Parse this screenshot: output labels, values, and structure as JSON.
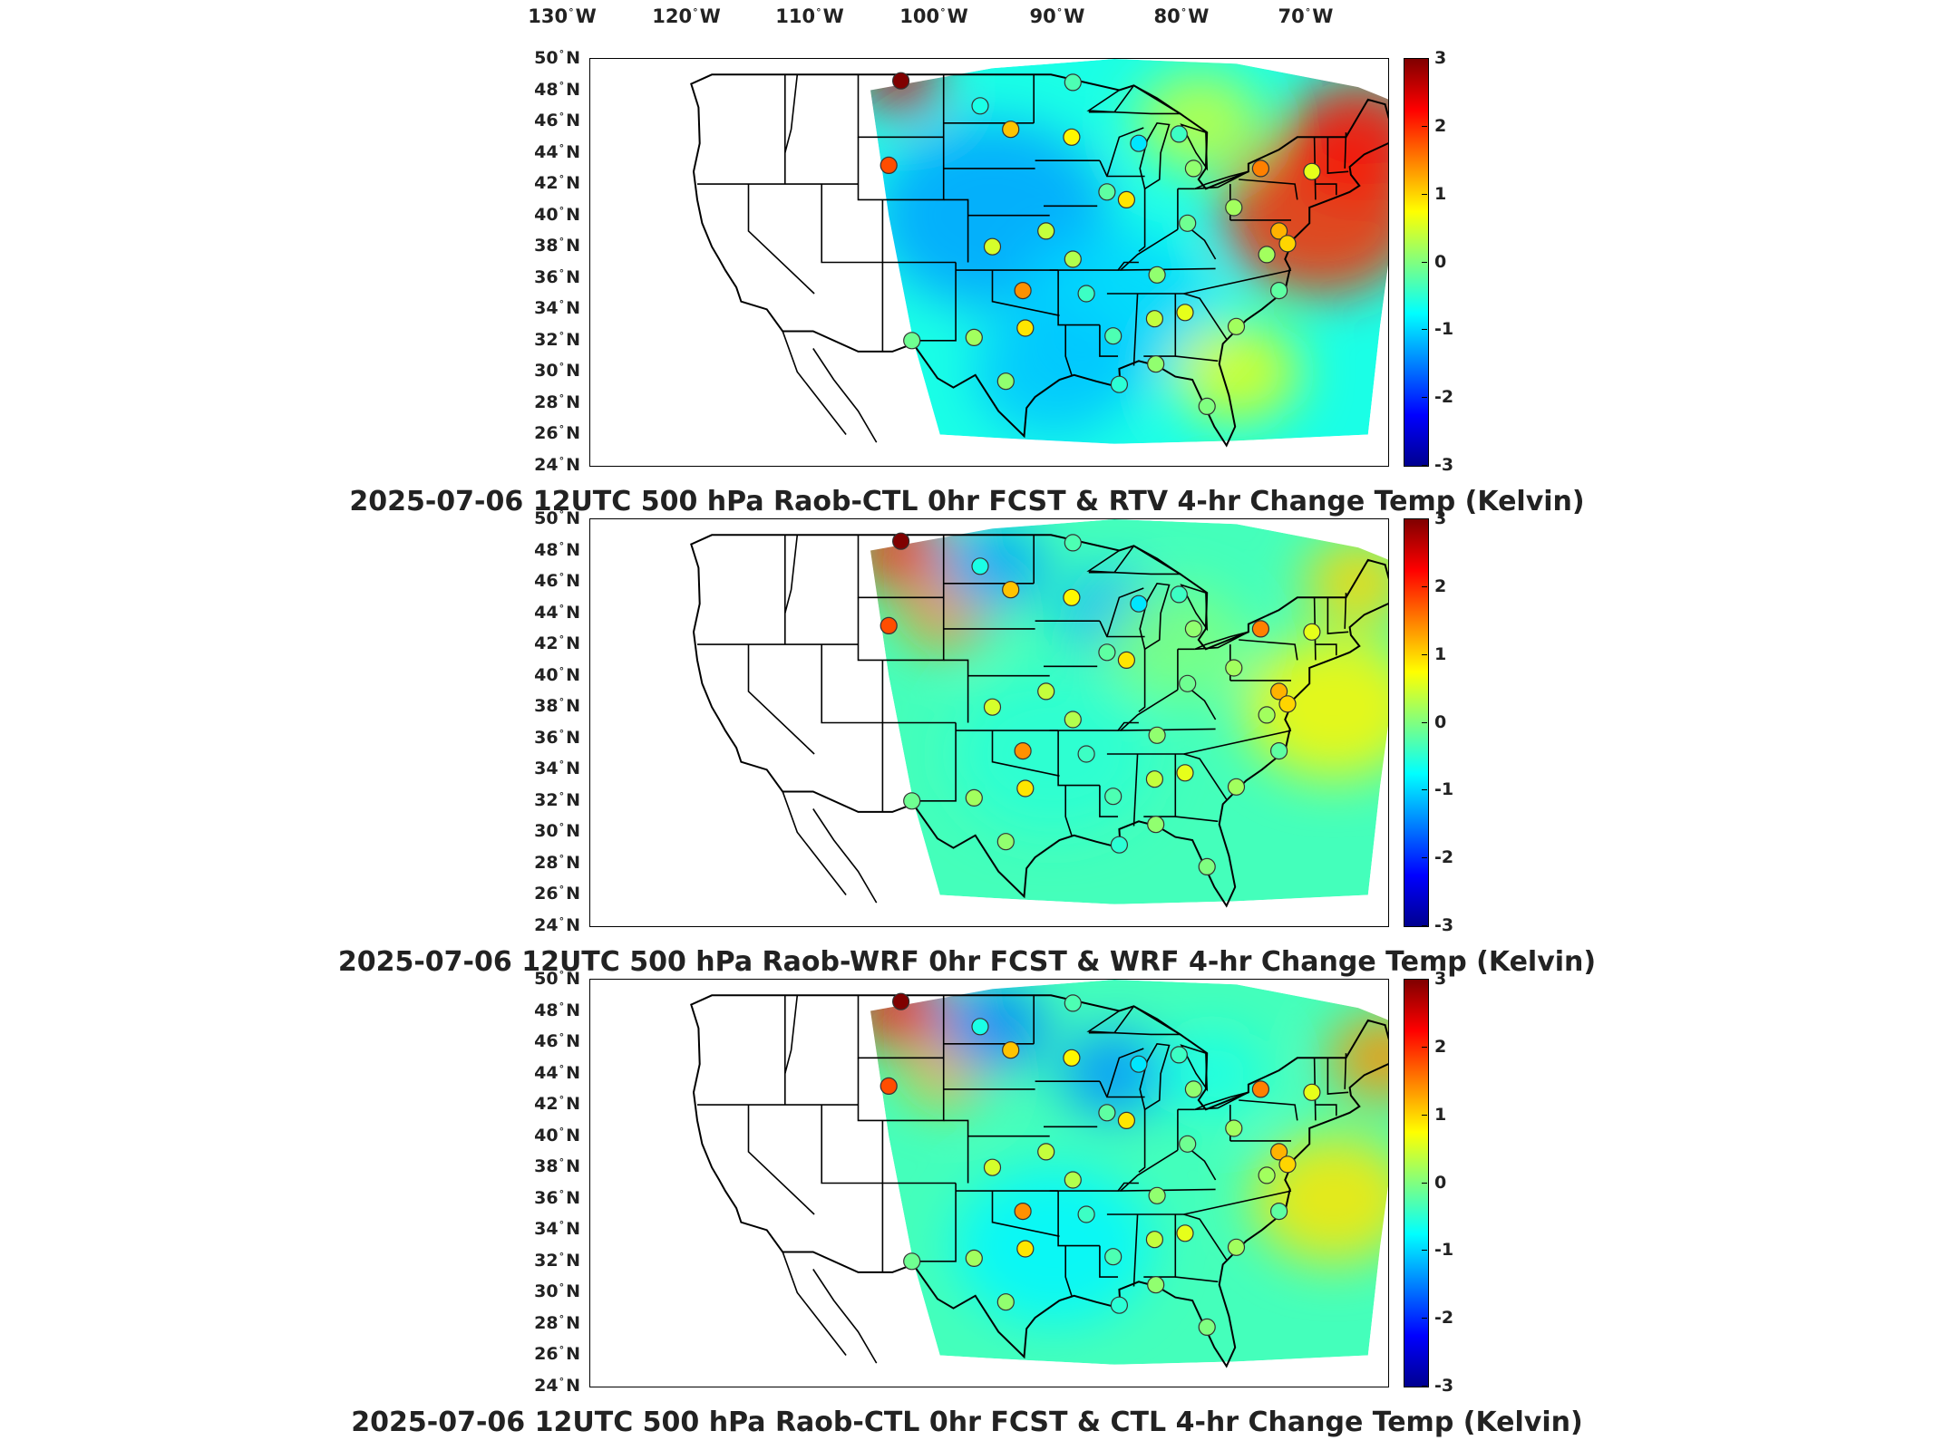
{
  "lon_labels": [
    {
      "deg": "130",
      "hem": "W"
    },
    {
      "deg": "120",
      "hem": "W"
    },
    {
      "deg": "110",
      "hem": "W"
    },
    {
      "deg": "100",
      "hem": "W"
    },
    {
      "deg": "90",
      "hem": "W"
    },
    {
      "deg": "80",
      "hem": "W"
    },
    {
      "deg": "70",
      "hem": "W"
    }
  ],
  "lat_labels": [
    {
      "deg": "50",
      "hem": "N"
    },
    {
      "deg": "48",
      "hem": "N"
    },
    {
      "deg": "46",
      "hem": "N"
    },
    {
      "deg": "44",
      "hem": "N"
    },
    {
      "deg": "42",
      "hem": "N"
    },
    {
      "deg": "40",
      "hem": "N"
    },
    {
      "deg": "38",
      "hem": "N"
    },
    {
      "deg": "36",
      "hem": "N"
    },
    {
      "deg": "34",
      "hem": "N"
    },
    {
      "deg": "32",
      "hem": "N"
    },
    {
      "deg": "30",
      "hem": "N"
    },
    {
      "deg": "28",
      "hem": "N"
    },
    {
      "deg": "26",
      "hem": "N"
    },
    {
      "deg": "24",
      "hem": "N"
    }
  ],
  "colorbar": {
    "ticks": [
      "3",
      "2",
      "1",
      "0",
      "-1",
      "-2",
      "-3"
    ],
    "min": -3,
    "max": 3
  },
  "panels": [
    {
      "title": "2025-07-06 12UTC 500 hPa Raob-CTL 0hr FCST & RTV 4-hr Change Temp (Kelvin)"
    },
    {
      "title": "2025-07-06 12UTC 500 hPa Raob-WRF 0hr FCST & WRF 4-hr Change Temp (Kelvin)"
    },
    {
      "title": "2025-07-06 12UTC 500 hPa Raob-CTL 0hr FCST & CTL 4-hr Change Temp (Kelvin)"
    }
  ],
  "stations": [
    {
      "lat": 48.6,
      "lon": -107.5,
      "v": 3.0
    },
    {
      "lat": 47.0,
      "lon": -101.0,
      "v": -0.6
    },
    {
      "lat": 45.5,
      "lon": -98.5,
      "v": 1.1
    },
    {
      "lat": 43.2,
      "lon": -108.5,
      "v": 1.8
    },
    {
      "lat": 45.0,
      "lon": -93.5,
      "v": 0.8
    },
    {
      "lat": 48.5,
      "lon": -93.4,
      "v": -0.3
    },
    {
      "lat": 44.6,
      "lon": -88.0,
      "v": -0.9
    },
    {
      "lat": 45.2,
      "lon": -84.7,
      "v": -0.4
    },
    {
      "lat": 43.0,
      "lon": -83.5,
      "v": 0.1
    },
    {
      "lat": 43.0,
      "lon": -78.0,
      "v": 1.5
    },
    {
      "lat": 42.8,
      "lon": -73.8,
      "v": 0.6
    },
    {
      "lat": 41.5,
      "lon": -90.6,
      "v": -0.2
    },
    {
      "lat": 41.0,
      "lon": -89.0,
      "v": 0.9
    },
    {
      "lat": 40.5,
      "lon": -80.2,
      "v": 0.2
    },
    {
      "lat": 39.5,
      "lon": -84.0,
      "v": -0.1
    },
    {
      "lat": 39.0,
      "lon": -95.6,
      "v": 0.4
    },
    {
      "lat": 38.0,
      "lon": -100.0,
      "v": 0.5
    },
    {
      "lat": 37.2,
      "lon": -93.4,
      "v": 0.3
    },
    {
      "lat": 37.5,
      "lon": -77.5,
      "v": 0.2
    },
    {
      "lat": 39.0,
      "lon": -76.5,
      "v": 1.2
    },
    {
      "lat": 38.2,
      "lon": -75.8,
      "v": 1.0
    },
    {
      "lat": 35.2,
      "lon": -97.5,
      "v": 1.4
    },
    {
      "lat": 35.0,
      "lon": -92.3,
      "v": -0.4
    },
    {
      "lat": 36.2,
      "lon": -86.5,
      "v": 0.1
    },
    {
      "lat": 35.2,
      "lon": -76.5,
      "v": -0.2
    },
    {
      "lat": 33.4,
      "lon": -86.7,
      "v": 0.4
    },
    {
      "lat": 33.8,
      "lon": -84.2,
      "v": 0.6
    },
    {
      "lat": 32.9,
      "lon": -80.0,
      "v": 0.2
    },
    {
      "lat": 32.8,
      "lon": -97.3,
      "v": 0.9
    },
    {
      "lat": 32.3,
      "lon": -90.1,
      "v": -0.3
    },
    {
      "lat": 32.2,
      "lon": -101.5,
      "v": 0.2
    },
    {
      "lat": 32.0,
      "lon": -106.6,
      "v": -0.1
    },
    {
      "lat": 30.5,
      "lon": -86.6,
      "v": 0.1
    },
    {
      "lat": 29.4,
      "lon": -98.9,
      "v": 0.1
    },
    {
      "lat": 29.2,
      "lon": -89.6,
      "v": -0.5
    },
    {
      "lat": 27.8,
      "lon": -82.4,
      "v": 0.0
    }
  ]
}
